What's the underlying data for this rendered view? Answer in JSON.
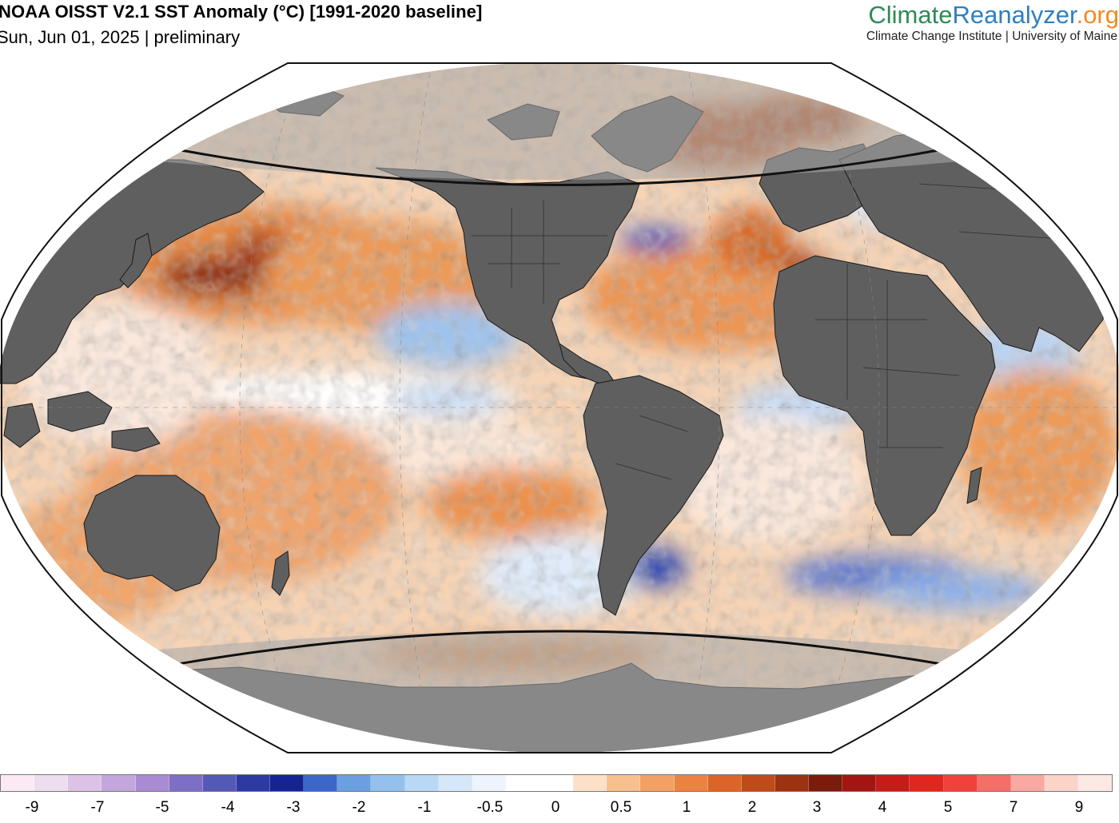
{
  "header": {
    "title": "NOAA OISST V2.1 SST Anomaly (°C) [1991-2020 baseline]",
    "subtitle": "Sun, Jun 01, 2025 | preliminary"
  },
  "brand": {
    "name_part1": "Climate",
    "name_part2": "Reanalyzer",
    "name_part3": ".org",
    "affiliation": "Climate Change Institute | University of Maine",
    "colors": {
      "part1": "#2e8b57",
      "part2": "#2f7fbf",
      "part3": "#f08a24"
    }
  },
  "map": {
    "projection": "robinson-like ellipse",
    "land_color": "#5f5f5f",
    "polar_mask_color": "#9a9a9a",
    "ocean_neutral_color": "#ffffff"
  },
  "colorbar": {
    "colors": [
      "#fbeaf5",
      "#eedcef",
      "#dcc3e6",
      "#c2a6dc",
      "#a88bd2",
      "#7d6fc4",
      "#5559b6",
      "#2e3aa3",
      "#142493",
      "#3a67c9",
      "#6aa0e0",
      "#93c1ee",
      "#b9d8f5",
      "#d6e7fa",
      "#edf4fd",
      "#ffffff",
      "#ffffff",
      "#fde0c8",
      "#f8c08e",
      "#f3a064",
      "#ec8240",
      "#dd6426",
      "#c04a19",
      "#9c3212",
      "#7a1b0c",
      "#a41511",
      "#c71b16",
      "#e0261f",
      "#f2413a",
      "#f56e67",
      "#f8a9a1",
      "#fbd3c9",
      "#fde9e3"
    ],
    "labels": [
      "-9",
      "-7",
      "-5",
      "-4",
      "-3",
      "-2",
      "-1",
      "-0.5",
      "0",
      "0.5",
      "1",
      "2",
      "3",
      "4",
      "5",
      "7",
      "9"
    ]
  }
}
